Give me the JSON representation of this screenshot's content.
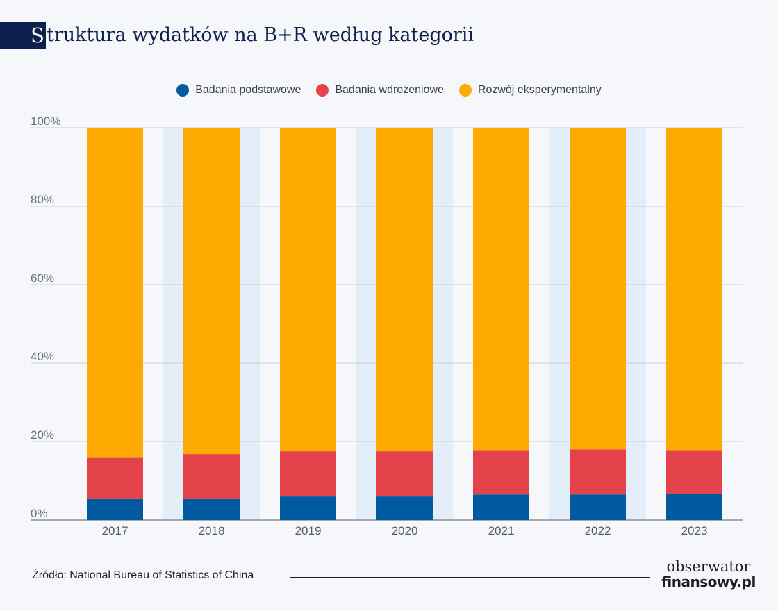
{
  "title": {
    "initial": "S",
    "rest": "truktura wydatków na B+R według kategorii"
  },
  "legend": [
    {
      "label": "Badania podstawowe",
      "color": "#005aa0"
    },
    {
      "label": "Badania wdrożeniowe",
      "color": "#e5434b"
    },
    {
      "label": "Rozwój eksperymentalny",
      "color": "#ffaa00"
    }
  ],
  "chart_data": {
    "type": "bar",
    "stacked": true,
    "categories": [
      "2017",
      "2018",
      "2019",
      "2020",
      "2021",
      "2022",
      "2023"
    ],
    "series": [
      {
        "name": "Badania podstawowe",
        "color": "#005aa0",
        "values": [
          5.5,
          5.5,
          6.0,
          6.0,
          6.5,
          6.5,
          6.7
        ]
      },
      {
        "name": "Badania wdrożeniowe",
        "color": "#e5434b",
        "values": [
          10.5,
          11.3,
          11.5,
          11.5,
          11.3,
          11.5,
          11.1
        ]
      },
      {
        "name": "Rozwój eksperymentalny",
        "color": "#ffaa00",
        "values": [
          84.0,
          83.2,
          82.5,
          82.5,
          82.2,
          82.0,
          82.2
        ]
      }
    ],
    "y_ticks": [
      "0%",
      "20%",
      "40%",
      "60%",
      "80%",
      "100%"
    ],
    "ylim": [
      0,
      100
    ],
    "grid": true,
    "legend_position": "top-center",
    "band_color": "#e3eef9",
    "grid_color": "#c8ccd4"
  },
  "source": "Źródło: National Bureau of Statistics of China",
  "logo": {
    "line1": "obserwator",
    "line2": "finansowy.pl"
  }
}
